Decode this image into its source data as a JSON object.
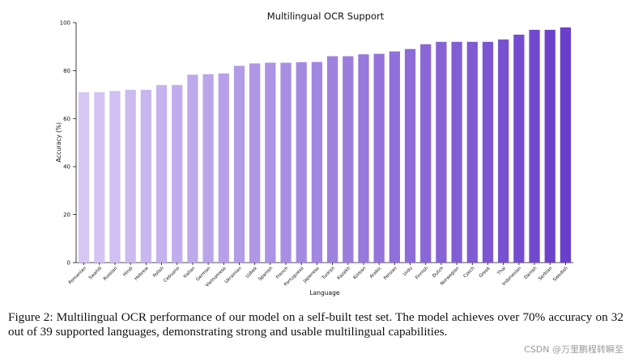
{
  "chart_data": {
    "type": "bar",
    "title": "Multilingual OCR Support",
    "xlabel": "Language",
    "ylabel": "Accuracy (%)",
    "ylim": [
      0,
      100
    ],
    "yticks": [
      0,
      20,
      40,
      60,
      80,
      100
    ],
    "categories": [
      "Romanian",
      "Swahili",
      "Russian",
      "Hindi",
      "Hebrew",
      "Polish",
      "Cebuano",
      "Italian",
      "German",
      "Vietnamese",
      "Ukrainian",
      "Uzbek",
      "Spanish",
      "French",
      "Portuguese",
      "Japanese",
      "Turkish",
      "Kazakh",
      "Korean",
      "Arabic",
      "Persian",
      "Urdu",
      "Finnish",
      "Dutch",
      "Norwegian",
      "Czech",
      "Greek",
      "Thai",
      "Indonesian",
      "Danish",
      "Serbian",
      "Swedish"
    ],
    "values": [
      71,
      71,
      71.5,
      72,
      72,
      74,
      74,
      78.3,
      78.5,
      78.8,
      82,
      83,
      83.3,
      83.3,
      83.5,
      83.6,
      86,
      86,
      86.8,
      87,
      88,
      89,
      91,
      92,
      92,
      92,
      92,
      93,
      95,
      97,
      97,
      98
    ],
    "color_start": "#d6c8f5",
    "color_end": "#6a3fcb",
    "grid": false
  },
  "caption": "Figure 2: Multilingual OCR performance of our model on a self-built test set. The model achieves over 70% accuracy on 32 out of 39 supported languages, demonstrating strong and usable multilingual capabilities.",
  "watermark": "CSDN @万里鹏程转瞬至"
}
